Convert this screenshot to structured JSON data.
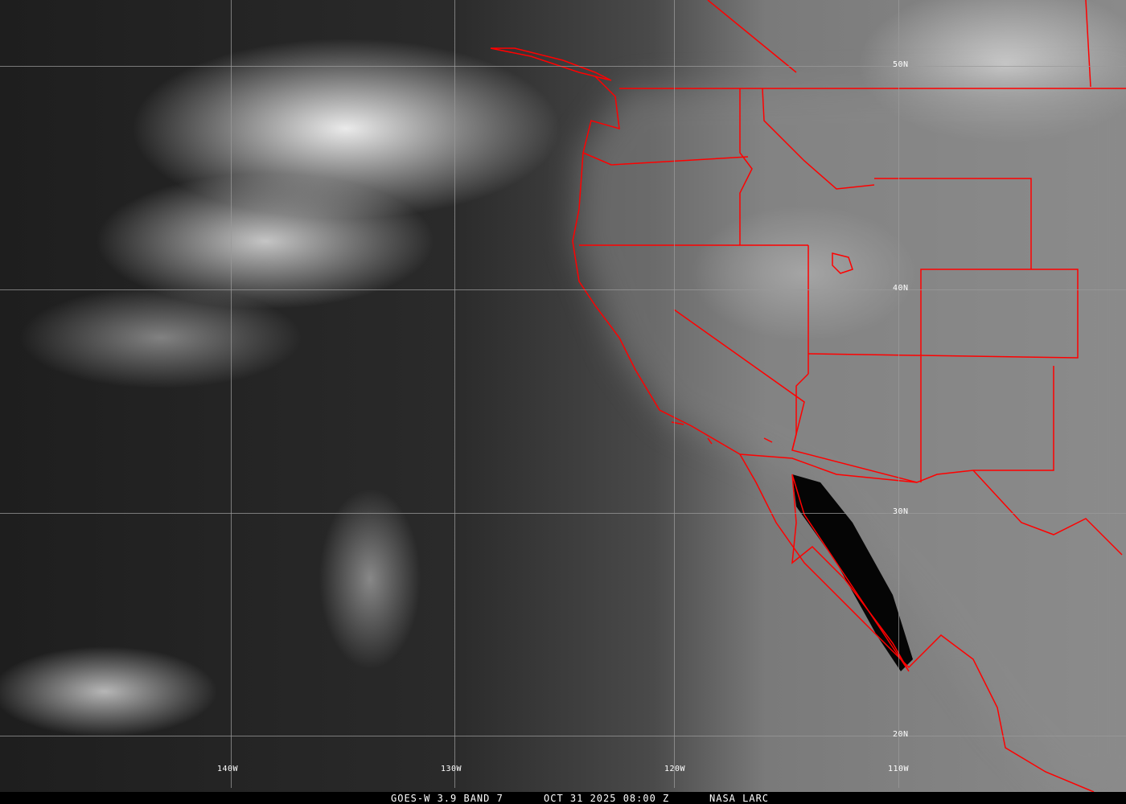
{
  "colors": {
    "borders": "#ff0000",
    "gridlines": "#9a9a9a",
    "labels": "#ffffff"
  },
  "grid": {
    "longitudes": [
      {
        "label": "140W"
      },
      {
        "label": "130W"
      },
      {
        "label": "120W"
      },
      {
        "label": "110W"
      }
    ],
    "latitudes": [
      {
        "label": "50N"
      },
      {
        "label": "40N"
      },
      {
        "label": "30N"
      },
      {
        "label": "20N"
      }
    ]
  },
  "caption": {
    "satellite": "GOES-W 3.9 BAND 7",
    "datetime": "OCT 31 2025 08:00 Z",
    "source": "NASA LARC"
  }
}
